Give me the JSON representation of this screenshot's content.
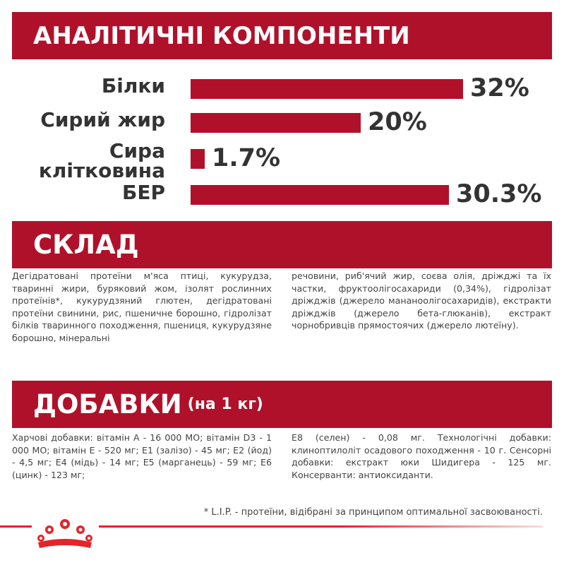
{
  "analytic": {
    "title": "АНАЛІТИЧНІ КОМПОНЕНТИ",
    "rows": [
      {
        "label": "Білки",
        "value": "32%",
        "fraction": 1.0
      },
      {
        "label": "Сирий жир",
        "value": "20%",
        "fraction": 0.625
      },
      {
        "label_line1": "Сира",
        "label_line2": "клітковина",
        "value": "1.7%",
        "fraction": 0.053
      },
      {
        "label": "БЕР",
        "value": "30.3%",
        "fraction": 0.947
      }
    ]
  },
  "composition": {
    "title": "СКЛАД",
    "col1": "Дегідратовані протеїни м'яса птиці, кукурудза, тваринні жири, буряковий жом, ізолят рослинних протеїнів*, кукурудзяний глютен, дегідратовані протеїни свинини, рис, пшеничне борошно, гідролізат білків тваринного походження, пшениця, кукурудзяне борошно, мінеральні",
    "col2": "речовини, риб'ячий жир, соєва олія, дріжджі та їх частки, фруктоолігосахариди (0,34%), гідролізат дріжджів (джерело мананоолігосахаридів), екстракти дріжджів (джерело бета-глюканів), екстракт чорнобривців прямостоячих (джерело лютеїну)."
  },
  "additives": {
    "title": "ДОБАВКИ",
    "subtitle": "(на 1 кг)",
    "col1": "Харчові добавки: вітамін A - 16 000 МО; вітамін D3 - 1 000 МО; вітамін E - 520 мг; E1 (залізо) - 45 мг; E2 (йод) - 4,5 мг; E4 (мідь) - 14 мг; E5 (марганець) - 59 мг; E6 (цинк) - 123 мг;",
    "col2": "E8 (селен) - 0,08 мг. Технологічні добавки: клиноптилоліт осадового походження - 10 г. Сенсорні добавки: екстракт юки Шидигера - 125 мг. Консерванти: антиоксиданти."
  },
  "footnote": "* L.I.P. - протеїни, відібрані за принципом оптимальної засвоюваності.",
  "colors": {
    "brand": "#b0112a",
    "accent": "#e3242b",
    "text": "#333333"
  },
  "icons": {
    "logo": "royal-canin-crown-icon"
  }
}
